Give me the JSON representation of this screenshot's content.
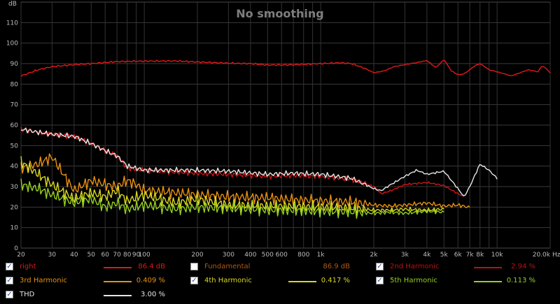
{
  "chart_data": {
    "type": "line",
    "title": "No smoothing",
    "yunit": "dB",
    "ylim": [
      0,
      120
    ],
    "yticks": [
      0,
      10,
      20,
      30,
      40,
      50,
      60,
      70,
      80,
      90,
      100,
      110
    ],
    "xscale": "log",
    "xlim": [
      20,
      20000
    ],
    "xticks": [
      {
        "v": 20,
        "label": "20"
      },
      {
        "v": 30,
        "label": "30"
      },
      {
        "v": 40,
        "label": "40"
      },
      {
        "v": 50,
        "label": "50"
      },
      {
        "v": 60,
        "label": "60"
      },
      {
        "v": 70,
        "label": "70"
      },
      {
        "v": 80,
        "label": "80"
      },
      {
        "v": 90,
        "label": "90"
      },
      {
        "v": 100,
        "label": "100"
      },
      {
        "v": 200,
        "label": "200"
      },
      {
        "v": 300,
        "label": "300"
      },
      {
        "v": 400,
        "label": "400"
      },
      {
        "v": 500,
        "label": "500"
      },
      {
        "v": 600,
        "label": "600"
      },
      {
        "v": 800,
        "label": "800"
      },
      {
        "v": 1000,
        "label": "1k"
      },
      {
        "v": 2000,
        "label": "2k"
      },
      {
        "v": 3000,
        "label": "3k"
      },
      {
        "v": 4000,
        "label": "4k"
      },
      {
        "v": 5000,
        "label": "5k"
      },
      {
        "v": 6000,
        "label": "6k"
      },
      {
        "v": 7000,
        "label": "7k"
      },
      {
        "v": 8000,
        "label": "8k"
      },
      {
        "v": 10000,
        "label": "10k"
      },
      {
        "v": 20000,
        "label": "20.0k"
      }
    ],
    "xunit": "Hz",
    "grid": true,
    "series": [
      {
        "key": "right",
        "color": "#e01818",
        "x": [
          20,
          25,
          30,
          40,
          50,
          70,
          100,
          150,
          200,
          300,
          400,
          500,
          700,
          1000,
          1300,
          1500,
          1800,
          2000,
          2300,
          2600,
          3000,
          3500,
          4000,
          4500,
          5000,
          5500,
          6000,
          6500,
          7000,
          7500,
          8000,
          8500,
          9000,
          10000,
          11000,
          12000,
          13000,
          14000,
          15000,
          17000,
          18000,
          19000,
          20000
        ],
        "y": [
          84,
          87,
          88.5,
          89.5,
          90,
          91,
          91.2,
          91.3,
          90.8,
          90.2,
          90,
          89.3,
          89.4,
          90,
          90.4,
          90,
          87.5,
          85.5,
          86.5,
          88.5,
          89.5,
          90.5,
          91.5,
          88,
          92,
          86.5,
          84.5,
          85,
          87,
          89,
          90,
          88.5,
          87,
          86,
          85,
          84,
          85,
          86,
          87,
          86,
          89,
          87.5,
          85.5
        ]
      },
      {
        "key": "h2",
        "color": "#d01515",
        "x": [
          20,
          25,
          30,
          40,
          50,
          60,
          70,
          80,
          100,
          150,
          200,
          300,
          500,
          700,
          1000,
          1500,
          2000,
          2200,
          2500,
          3000,
          4000,
          5000,
          6000,
          6500
        ],
        "y": [
          58,
          56.5,
          55.5,
          54.5,
          51,
          47.5,
          45,
          39,
          38,
          37,
          36.5,
          36,
          35,
          35.5,
          35,
          33.5,
          30,
          26.5,
          28,
          31,
          32,
          30.5,
          26.5,
          25
        ]
      },
      {
        "key": "h3",
        "color": "#e8900f",
        "x": [
          20,
          25,
          30,
          40,
          50,
          60,
          70,
          80,
          90,
          100,
          150,
          200,
          300,
          500,
          700,
          1000,
          1500,
          2000,
          2500,
          3000,
          4000,
          5000,
          6000,
          7000
        ],
        "y": [
          39,
          41,
          44.5,
          28,
          33,
          31,
          30,
          33,
          31,
          28,
          27,
          26,
          25,
          24.5,
          23.5,
          23,
          22.5,
          21,
          20.5,
          21,
          22,
          20.5,
          21,
          19.8
        ]
      },
      {
        "key": "h4",
        "color": "#d8d820",
        "x": [
          20,
          25,
          30,
          40,
          50,
          60,
          70,
          80,
          100,
          150,
          200,
          300,
          500,
          700,
          1000,
          1500,
          2000,
          2500,
          3000,
          4000,
          5000
        ],
        "y": [
          42,
          36,
          31,
          24,
          27,
          25,
          28,
          23,
          26,
          22,
          24,
          21,
          20.5,
          20.5,
          20,
          19.5,
          18.5,
          18.5,
          19,
          18.5,
          19
        ]
      },
      {
        "key": "h5",
        "color": "#96d020",
        "x": [
          20,
          25,
          30,
          40,
          50,
          60,
          70,
          80,
          100,
          150,
          200,
          300,
          500,
          700,
          1000,
          1500,
          2000,
          2500,
          3000,
          4000,
          5000
        ],
        "y": [
          31,
          29,
          26,
          22,
          24,
          20,
          22,
          19,
          21,
          19,
          20,
          19.5,
          18.5,
          18.5,
          18,
          17.5,
          17,
          17.5,
          17,
          18,
          17.5
        ]
      },
      {
        "key": "thd",
        "color": "#e6e6e6",
        "x": [
          20,
          25,
          30,
          40,
          50,
          60,
          70,
          80,
          100,
          150,
          200,
          300,
          500,
          700,
          1000,
          1500,
          2000,
          2200,
          2500,
          3000,
          3500,
          4000,
          5000,
          6000,
          6500,
          7000,
          8000,
          9000,
          10000
        ],
        "y": [
          58,
          56.5,
          55.5,
          54.5,
          51,
          47.5,
          45,
          40,
          38,
          38,
          38,
          37.5,
          36,
          36.5,
          36,
          34,
          29,
          28,
          31,
          35,
          38,
          36,
          37.5,
          29,
          25,
          30,
          41,
          38,
          34
        ]
      }
    ]
  },
  "legend": [
    {
      "key": "right",
      "label": "right",
      "value": "86.4 dB",
      "checked": true,
      "color": "#e01818",
      "valueColor": "#e01818",
      "labelColor": "#e01818"
    },
    {
      "key": "fundamental",
      "label": "Fundamental",
      "value": "86.9 dB",
      "checked": false,
      "color": "",
      "valueColor": "#b05a10",
      "labelColor": "#b05a10"
    },
    {
      "key": "h2",
      "label": "2nd Harmonic",
      "value": "2.94 %",
      "checked": true,
      "color": "#c01010",
      "valueColor": "#c01010",
      "labelColor": "#c01010"
    },
    {
      "key": "h3",
      "label": "3rd Harmonic",
      "value": "0.409 %",
      "checked": true,
      "color": "#e8900f",
      "valueColor": "#e8900f",
      "labelColor": "#e8900f"
    },
    {
      "key": "h4",
      "label": "4th Harmonic",
      "value": "0.417 %",
      "checked": true,
      "color": "#d8d820",
      "valueColor": "#d8d820",
      "labelColor": "#d8d820"
    },
    {
      "key": "h5",
      "label": "5th Harmonic",
      "value": "0.113 %",
      "checked": true,
      "color": "#96d020",
      "valueColor": "#96d020",
      "labelColor": "#96d020"
    },
    {
      "key": "thd",
      "label": "THD",
      "value": "3.00 %",
      "checked": true,
      "color": "#e6e6e6",
      "valueColor": "#e6e6e6",
      "labelColor": "#e6e6e6"
    }
  ]
}
